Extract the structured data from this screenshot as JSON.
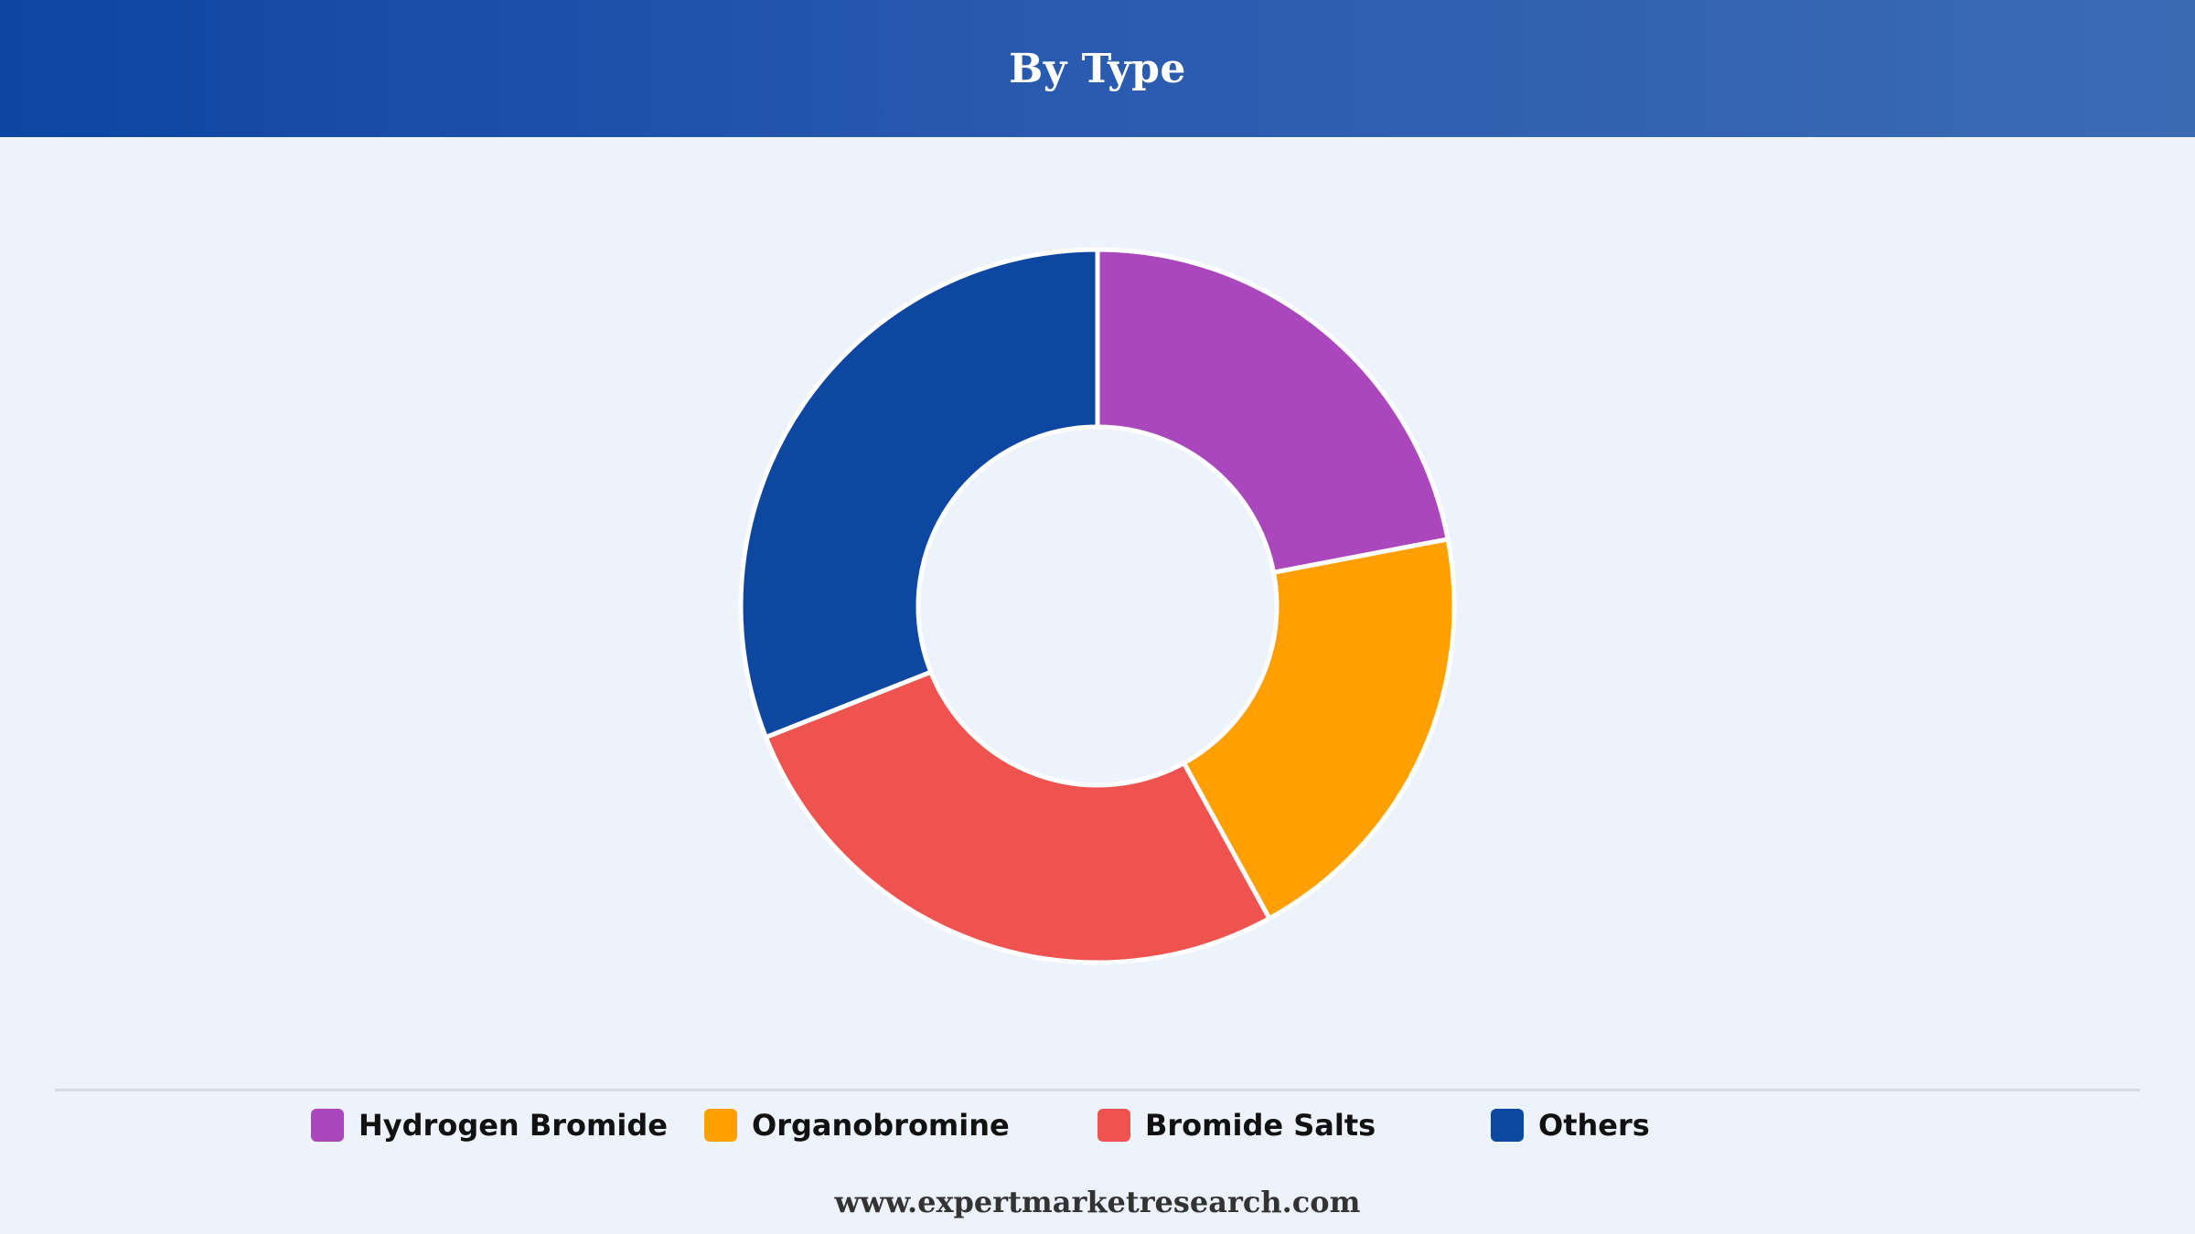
{
  "header": {
    "title": "By Type"
  },
  "chart_data": {
    "type": "pie",
    "title": "By Type",
    "donut": true,
    "categories": [
      "Hydrogen Bromide",
      "Organobromine",
      "Bromide Salts",
      "Others"
    ],
    "values": [
      22,
      20,
      27,
      31
    ],
    "colors": [
      "#ab47bc",
      "#ffa000",
      "#ef5350",
      "#0d47a1"
    ],
    "legend_position": "bottom"
  },
  "legend": {
    "items": [
      {
        "label": "Hydrogen Bromide",
        "color": "#ab47bc"
      },
      {
        "label": "Organobromine",
        "color": "#ffa000"
      },
      {
        "label": "Bromide Salts",
        "color": "#ef5350"
      },
      {
        "label": "Others",
        "color": "#0d47a1"
      }
    ]
  },
  "footer": {
    "url": "www.expertmarketresearch.com"
  },
  "colors": {
    "background": "#ecf3fc",
    "header_start": "#0e45a3",
    "header_end": "#3b6bb3",
    "slice_border": "#ffffff"
  }
}
